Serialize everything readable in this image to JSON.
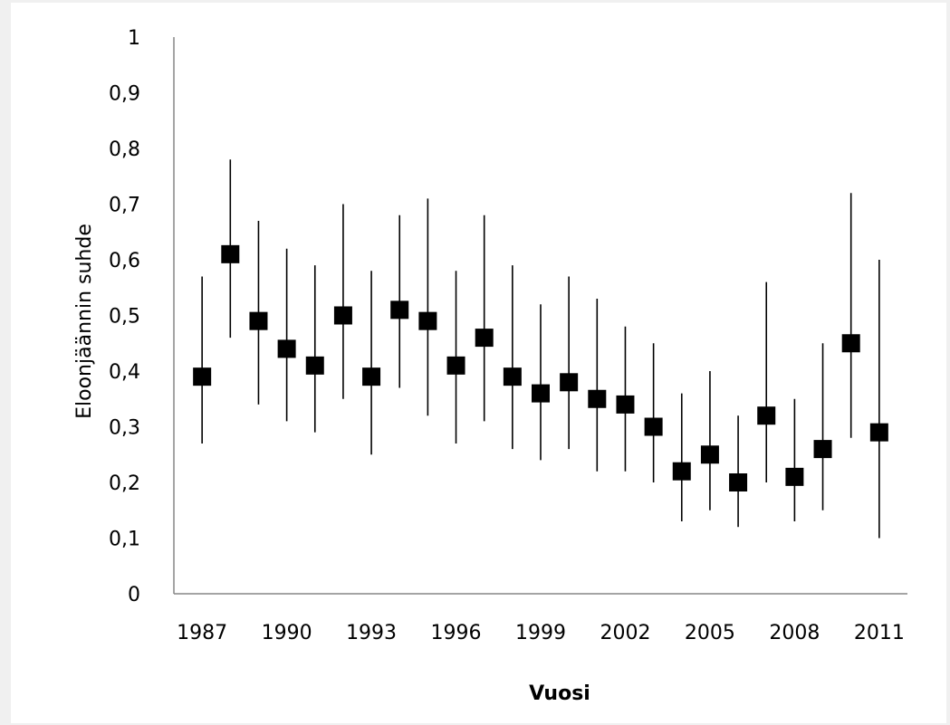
{
  "chart_data": {
    "type": "scatter",
    "title": "",
    "xlabel": "Vuosi",
    "ylabel": "Eloonjäännin suhde",
    "xlim": [
      1986,
      2012
    ],
    "ylim": [
      0,
      1
    ],
    "y_ticks": [
      "0",
      "0,1",
      "0,2",
      "0,3",
      "0,4",
      "0,5",
      "0,6",
      "0,7",
      "0,8",
      "0,9",
      "1"
    ],
    "x_ticks": [
      "1987",
      "1990",
      "1993",
      "1996",
      "1999",
      "2002",
      "2005",
      "2008",
      "2011"
    ],
    "grid": false,
    "legend": "none",
    "marker_color": "#000000",
    "series": [
      {
        "x": [
          1987,
          1988,
          1989,
          1990,
          1991,
          1992,
          1993,
          1994,
          1995,
          1996,
          1997,
          1998,
          1999,
          2000,
          2001,
          2002,
          2003,
          2004,
          2005,
          2006,
          2007,
          2008,
          2009,
          2010,
          2011
        ],
        "y": [
          0.39,
          0.61,
          0.49,
          0.44,
          0.41,
          0.5,
          0.39,
          0.51,
          0.49,
          0.41,
          0.46,
          0.39,
          0.36,
          0.38,
          0.35,
          0.34,
          0.3,
          0.22,
          0.25,
          0.2,
          0.32,
          0.21,
          0.26,
          0.45,
          0.29
        ],
        "y_lower": [
          0.27,
          0.46,
          0.34,
          0.31,
          0.29,
          0.35,
          0.25,
          0.37,
          0.32,
          0.27,
          0.31,
          0.26,
          0.24,
          0.26,
          0.22,
          0.22,
          0.2,
          0.13,
          0.15,
          0.12,
          0.2,
          0.13,
          0.15,
          0.28,
          0.1
        ],
        "y_upper": [
          0.57,
          0.78,
          0.67,
          0.62,
          0.59,
          0.7,
          0.58,
          0.68,
          0.71,
          0.58,
          0.68,
          0.59,
          0.52,
          0.57,
          0.53,
          0.48,
          0.45,
          0.36,
          0.4,
          0.32,
          0.56,
          0.35,
          0.45,
          0.72,
          0.6
        ]
      }
    ]
  }
}
